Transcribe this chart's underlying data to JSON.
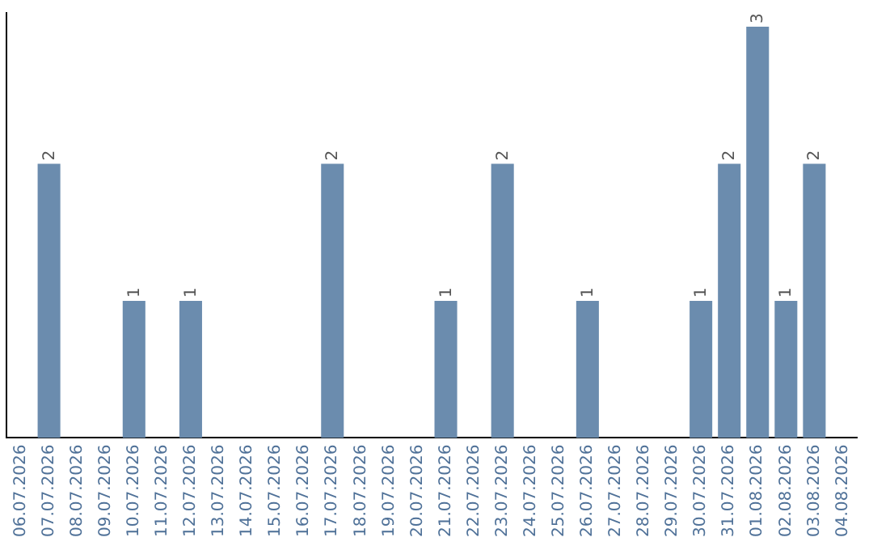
{
  "chart_data": {
    "type": "bar",
    "categories": [
      "06.07.2026",
      "07.07.2026",
      "08.07.2026",
      "09.07.2026",
      "10.07.2026",
      "11.07.2026",
      "12.07.2026",
      "13.07.2026",
      "14.07.2026",
      "15.07.2026",
      "16.07.2026",
      "17.07.2026",
      "18.07.2026",
      "19.07.2026",
      "20.07.2026",
      "21.07.2026",
      "22.07.2026",
      "23.07.2026",
      "24.07.2026",
      "25.07.2026",
      "26.07.2026",
      "27.07.2026",
      "28.07.2026",
      "29.07.2026",
      "30.07.2026",
      "31.07.2026",
      "01.08.2026",
      "02.08.2026",
      "03.08.2026",
      "04.08.2026"
    ],
    "values": [
      0,
      2,
      0,
      0,
      1,
      0,
      1,
      0,
      0,
      0,
      0,
      2,
      0,
      0,
      0,
      1,
      0,
      2,
      0,
      0,
      1,
      0,
      0,
      0,
      1,
      2,
      3,
      1,
      2,
      0
    ],
    "value_labels": [
      null,
      "2",
      null,
      null,
      "1",
      null,
      "1",
      null,
      null,
      null,
      null,
      "2",
      null,
      null,
      null,
      "1",
      null,
      "2",
      null,
      null,
      "1",
      null,
      null,
      null,
      "1",
      "2",
      "3",
      "1",
      "2",
      null
    ],
    "color": "#6b8cae",
    "ylim": [
      0,
      3.1
    ],
    "tick_labels": "x",
    "grid": false,
    "legend": false
  }
}
